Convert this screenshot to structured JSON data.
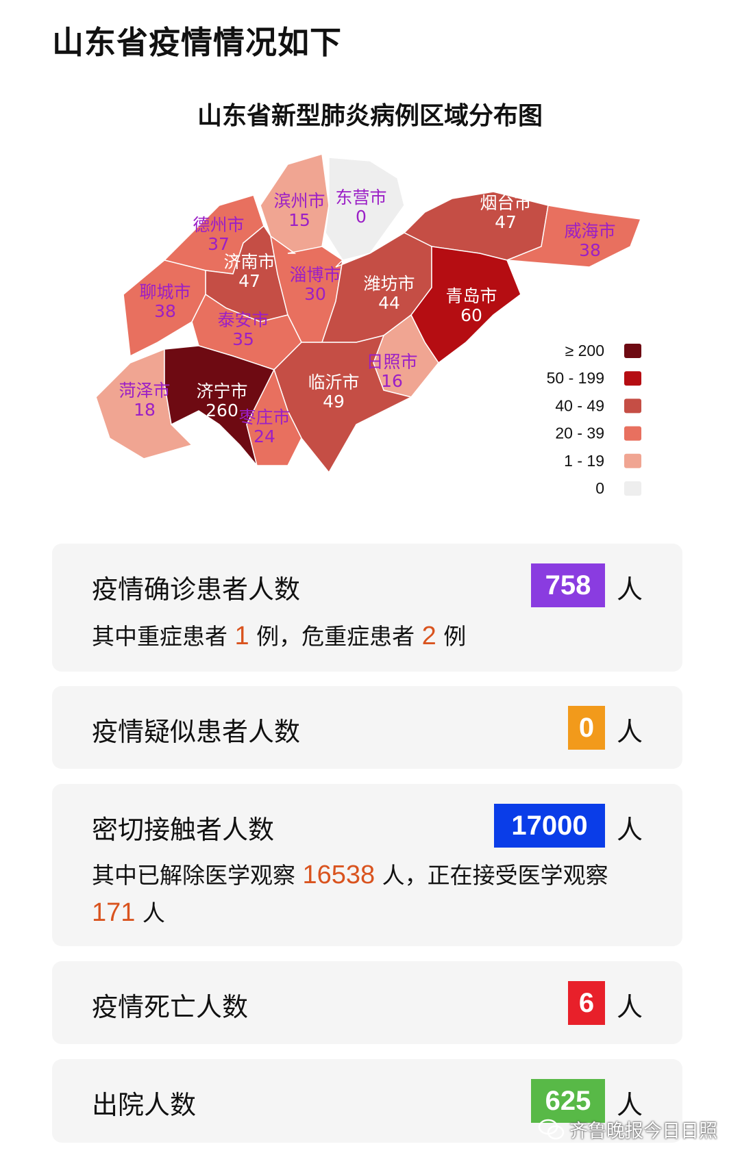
{
  "header": {
    "title": "山东省疫情情况如下"
  },
  "chart_data": {
    "type": "choropleth",
    "title": "山东省新型肺炎病例区域分布图",
    "regions": [
      {
        "name": "德州市",
        "value": 37
      },
      {
        "name": "滨州市",
        "value": 15
      },
      {
        "name": "东营市",
        "value": 0
      },
      {
        "name": "烟台市",
        "value": 47
      },
      {
        "name": "威海市",
        "value": 38
      },
      {
        "name": "济南市",
        "value": 47
      },
      {
        "name": "淄博市",
        "value": 30
      },
      {
        "name": "潍坊市",
        "value": 44
      },
      {
        "name": "青岛市",
        "value": 60
      },
      {
        "name": "聊城市",
        "value": 38
      },
      {
        "name": "泰安市",
        "value": 35
      },
      {
        "name": "日照市",
        "value": 16
      },
      {
        "name": "临沂市",
        "value": 49
      },
      {
        "name": "菏泽市",
        "value": 18
      },
      {
        "name": "济宁市",
        "value": 260
      },
      {
        "name": "枣庄市",
        "value": 24
      }
    ],
    "legend": {
      "placement": "bottom-right",
      "bins": [
        {
          "label": "≥ 200",
          "min": 200,
          "color": "#6e0a12"
        },
        {
          "label": "50 - 199",
          "min": 50,
          "color": "#b50d12"
        },
        {
          "label": "40 - 49",
          "min": 40,
          "color": "#c54e45"
        },
        {
          "label": "20 - 39",
          "min": 20,
          "color": "#e8705f"
        },
        {
          "label": "1 - 19",
          "min": 1,
          "color": "#f0a592"
        },
        {
          "label": "0",
          "min": 0,
          "color": "#eeeeee"
        }
      ]
    },
    "label_colors": {
      "light": "#9b1fc6",
      "dark": "#ffffff"
    }
  },
  "cards": [
    {
      "label": "疫情确诊患者人数",
      "value": "758",
      "unit": "人",
      "color": "#8a3ce0",
      "sub": {
        "p1": "其中重症患者",
        "n1": "1",
        "p2": "例，危重症患者",
        "n2": "2",
        "p3": "例"
      }
    },
    {
      "label": "疫情疑似患者人数",
      "value": "0",
      "unit": "人",
      "color": "#f29a1b"
    },
    {
      "label": "密切接触者人数",
      "value": "17000",
      "unit": "人",
      "color": "#0a3de8",
      "sub": {
        "p1": "其中已解除医学观察",
        "n1": "16538",
        "p2": "人，正在接受医学观察",
        "n2": "171",
        "p3": "人"
      }
    },
    {
      "label": "疫情死亡人数",
      "value": "6",
      "unit": "人",
      "color": "#e8202a"
    },
    {
      "label": "出院人数",
      "value": "625",
      "unit": "人",
      "color": "#58b947"
    }
  ],
  "watermark": {
    "text": "齐鲁晚报今日日照",
    "icon": "wechat-icon"
  }
}
